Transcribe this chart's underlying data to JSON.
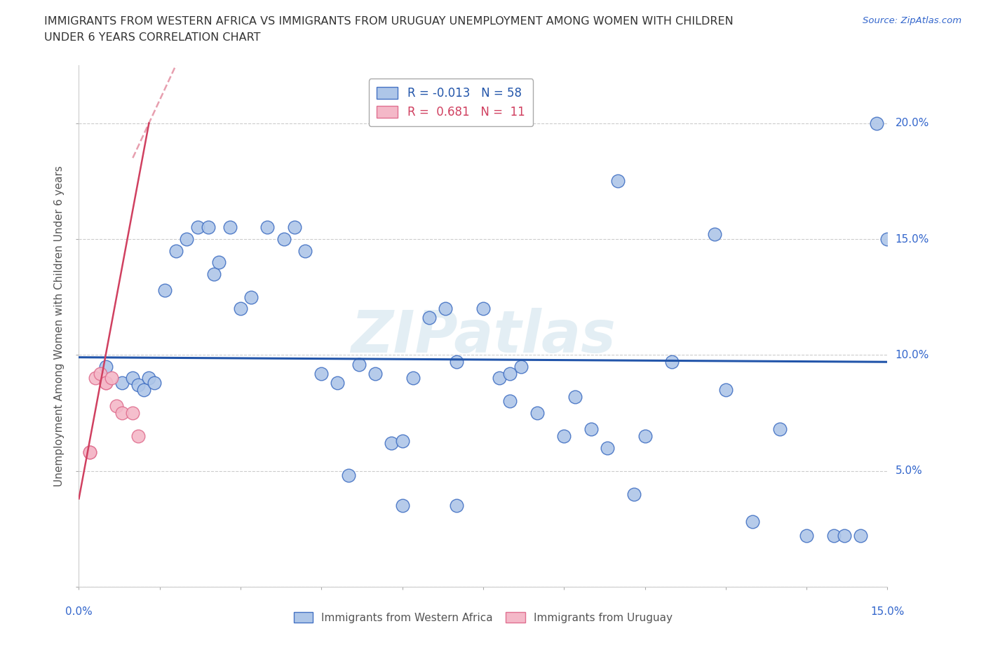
{
  "title_line1": "IMMIGRANTS FROM WESTERN AFRICA VS IMMIGRANTS FROM URUGUAY UNEMPLOYMENT AMONG WOMEN WITH CHILDREN",
  "title_line2": "UNDER 6 YEARS CORRELATION CHART",
  "source": "Source: ZipAtlas.com",
  "ylabel": "Unemployment Among Women with Children Under 6 years",
  "xlim": [
    0.0,
    0.15
  ],
  "ylim": [
    0.0,
    0.225
  ],
  "yticks": [
    0.0,
    0.05,
    0.1,
    0.15,
    0.2
  ],
  "ytick_labels": [
    "",
    "5.0%",
    "10.0%",
    "15.0%",
    "20.0%"
  ],
  "xtick_labels": [
    "0.0%",
    "",
    "",
    "",
    "",
    "",
    "",
    "",
    "",
    "",
    "15.0%"
  ],
  "color_blue_face": "#aec6e8",
  "color_blue_edge": "#4472c4",
  "color_pink_face": "#f4b8c8",
  "color_pink_edge": "#e07090",
  "line_blue": "#2255aa",
  "line_pink": "#d04060",
  "watermark": "ZIPatlas",
  "blue_x": [
    0.005,
    0.008,
    0.01,
    0.011,
    0.012,
    0.013,
    0.014,
    0.016,
    0.018,
    0.02,
    0.022,
    0.024,
    0.025,
    0.026,
    0.028,
    0.03,
    0.032,
    0.035,
    0.038,
    0.04,
    0.042,
    0.045,
    0.048,
    0.05,
    0.052,
    0.055,
    0.058,
    0.06,
    0.062,
    0.065,
    0.068,
    0.07,
    0.075,
    0.078,
    0.08,
    0.082,
    0.085,
    0.09,
    0.092,
    0.095,
    0.098,
    0.1,
    0.105,
    0.11,
    0.118,
    0.12,
    0.125,
    0.13,
    0.135,
    0.14,
    0.142,
    0.145,
    0.148,
    0.15,
    0.103,
    0.06,
    0.07,
    0.08
  ],
  "blue_y": [
    0.095,
    0.088,
    0.09,
    0.087,
    0.085,
    0.09,
    0.088,
    0.128,
    0.145,
    0.15,
    0.155,
    0.155,
    0.135,
    0.14,
    0.155,
    0.12,
    0.125,
    0.155,
    0.15,
    0.155,
    0.145,
    0.092,
    0.088,
    0.048,
    0.096,
    0.092,
    0.062,
    0.063,
    0.09,
    0.116,
    0.12,
    0.097,
    0.12,
    0.09,
    0.08,
    0.095,
    0.075,
    0.065,
    0.082,
    0.068,
    0.06,
    0.175,
    0.065,
    0.097,
    0.152,
    0.085,
    0.028,
    0.068,
    0.022,
    0.022,
    0.022,
    0.022,
    0.2,
    0.15,
    0.04,
    0.035,
    0.035,
    0.092
  ],
  "pink_x": [
    0.002,
    0.002,
    0.003,
    0.004,
    0.005,
    0.005,
    0.006,
    0.007,
    0.008,
    0.01,
    0.011
  ],
  "pink_y": [
    0.058,
    0.058,
    0.09,
    0.092,
    0.088,
    0.088,
    0.09,
    0.078,
    0.075,
    0.075,
    0.065
  ],
  "blue_trend_x": [
    0.0,
    0.15
  ],
  "blue_trend_y": [
    0.099,
    0.097
  ],
  "pink_trend_x": [
    0.0,
    0.013
  ],
  "pink_trend_y": [
    0.038,
    0.2
  ]
}
